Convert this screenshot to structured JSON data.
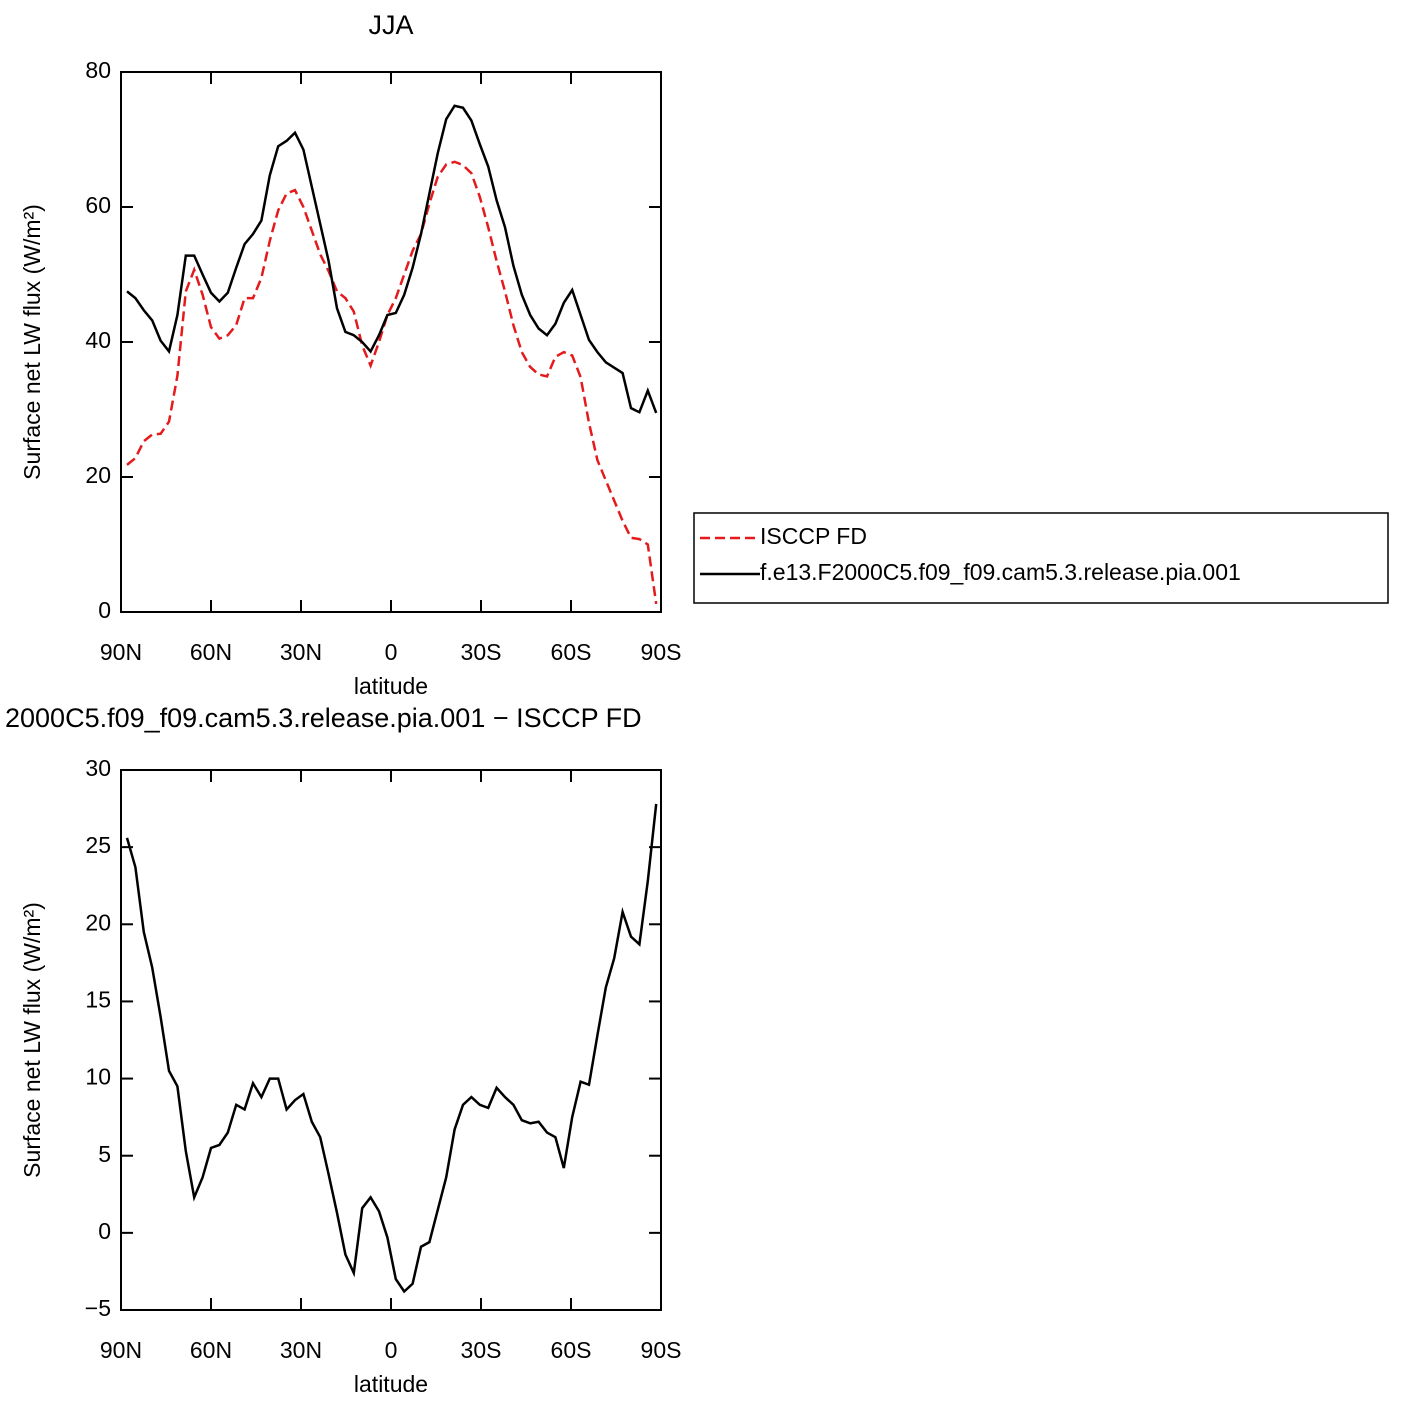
{
  "chart_data": [
    {
      "type": "line",
      "title": "JJA",
      "xlabel": "latitude",
      "ylabel": "Surface net LW flux (W/m²)",
      "x": [
        88,
        85.2,
        82.4,
        79.6,
        76.8,
        74,
        71.2,
        68.4,
        65.6,
        62.8,
        60,
        57.2,
        54.4,
        51.6,
        48.8,
        46,
        43.2,
        40.4,
        37.6,
        34.8,
        32,
        29.2,
        26.4,
        23.6,
        20.8,
        18,
        15.2,
        12.4,
        9.6,
        6.8,
        4,
        1.2,
        -1.6,
        -4.4,
        -7.2,
        -10,
        -12.8,
        -15.6,
        -18.4,
        -21.2,
        -24,
        -26.8,
        -29.6,
        -32.4,
        -35.2,
        -38,
        -40.8,
        -43.6,
        -46.4,
        -49.2,
        -52,
        -54.8,
        -57.6,
        -60.4,
        -63.2,
        -66,
        -68.8,
        -71.6,
        -74.4,
        -77.2,
        -80,
        -82.8,
        -85.6,
        -88.4
      ],
      "series": [
        {
          "name": "ISCCP FD",
          "color": "#e41a1c",
          "dash": true,
          "values": [
            21.8,
            22.8,
            25.3,
            26.3,
            26.4,
            28.2,
            35,
            47.5,
            50.7,
            47,
            42.2,
            40.5,
            41,
            42.5,
            46.5,
            46.5,
            49.5,
            55,
            59.5,
            62,
            62.5,
            60,
            56.5,
            53,
            50.5,
            47.5,
            46.5,
            44.5,
            39.5,
            36.5,
            40,
            44,
            46.5,
            50,
            53.5,
            56,
            60.5,
            64.5,
            66.3,
            66.7,
            66.2,
            65,
            61.5,
            57,
            52,
            47.5,
            42.5,
            38.5,
            36.3,
            35.2,
            34.9,
            37.8,
            38.5,
            38,
            34.8,
            28,
            22.5,
            19.5,
            16.5,
            13.5,
            11,
            10.8,
            10,
            1.2
          ]
        },
        {
          "name": "f.e13.F2000C5.f09_f09.cam5.3.release.pia.001",
          "color": "#000000",
          "dash": false,
          "values": [
            47.5,
            46.5,
            44.7,
            43.2,
            40.2,
            38.6,
            44,
            52.8,
            52.8,
            50,
            47.3,
            46,
            47.3,
            51,
            54.5,
            56,
            58,
            64.7,
            69,
            69.8,
            71,
            68.5,
            63,
            57.5,
            52,
            45,
            41.5,
            41,
            40,
            38.6,
            41,
            44,
            44.3,
            47,
            51,
            56,
            62,
            68,
            73,
            75,
            74.7,
            72.8,
            69.3,
            66,
            61,
            57,
            51.3,
            47,
            44,
            42,
            41,
            42.7,
            45.8,
            47.7,
            44,
            40.3,
            38.5,
            37,
            36.2,
            35.4,
            30.2,
            29.6,
            32.8,
            29.5
          ]
        }
      ],
      "xlim": [
        90,
        -90
      ],
      "xticks": [
        {
          "value": 90,
          "label": "90N"
        },
        {
          "value": 60,
          "label": "60N"
        },
        {
          "value": 30,
          "label": "30N"
        },
        0,
        {
          "value": -30,
          "label": "30S"
        },
        {
          "value": -60,
          "label": "60S"
        },
        {
          "value": -90,
          "label": "90S"
        }
      ],
      "ylim": [
        0,
        80
      ],
      "yticks": [
        0,
        20,
        40,
        60,
        80
      ],
      "legend": "right"
    },
    {
      "type": "line",
      "title": "2000C5.f09_f09.cam5.3.release.pia.001 − ISCCP FD",
      "xlabel": "latitude",
      "ylabel": "Surface net LW flux (W/m²)",
      "x": [
        88,
        85.2,
        82.4,
        79.6,
        76.8,
        74,
        71.2,
        68.4,
        65.6,
        62.8,
        60,
        57.2,
        54.4,
        51.6,
        48.8,
        46,
        43.2,
        40.4,
        37.6,
        34.8,
        32,
        29.2,
        26.4,
        23.6,
        20.8,
        18,
        15.2,
        12.4,
        9.6,
        6.8,
        4,
        1.2,
        -1.6,
        -4.4,
        -7.2,
        -10,
        -12.8,
        -15.6,
        -18.4,
        -21.2,
        -24,
        -26.8,
        -29.6,
        -32.4,
        -35.2,
        -38,
        -40.8,
        -43.6,
        -46.4,
        -49.2,
        -52,
        -54.8,
        -57.6,
        -60.4,
        -63.2,
        -66,
        -68.8,
        -71.6,
        -74.4,
        -77.2,
        -80,
        -82.8,
        -85.6,
        -88.4
      ],
      "series": [
        {
          "color": "#000000",
          "dash": false,
          "values": [
            25.6,
            23.7,
            19.5,
            17.2,
            14,
            10.5,
            9.5,
            5.3,
            2.3,
            3.6,
            5.5,
            5.7,
            6.5,
            8.3,
            8,
            9.7,
            8.8,
            10,
            10,
            8,
            8.6,
            9,
            7.2,
            6.2,
            3.8,
            1.3,
            -1.4,
            -2.6,
            1.6,
            2.3,
            1.4,
            -0.3,
            -3,
            -3.8,
            -3.3,
            -0.9,
            -0.6,
            1.5,
            3.6,
            6.7,
            8.3,
            8.8,
            8.3,
            8.1,
            9.4,
            8.8,
            8.3,
            7.3,
            7.1,
            7.2,
            6.5,
            6.2,
            4.2,
            7.5,
            9.8,
            9.6,
            12.8,
            15.9,
            17.8,
            20.8,
            19.2,
            18.7,
            22.8,
            27.8
          ]
        }
      ],
      "xlim": [
        90,
        -90
      ],
      "xticks": [
        {
          "value": 90,
          "label": "90N"
        },
        {
          "value": 60,
          "label": "60N"
        },
        {
          "value": 30,
          "label": "30N"
        },
        0,
        {
          "value": -30,
          "label": "30S"
        },
        {
          "value": -60,
          "label": "60S"
        },
        {
          "value": -90,
          "label": "90S"
        }
      ],
      "ylim": [
        -5,
        30
      ],
      "yticks": [
        {
          "value": -5,
          "label": "−5"
        },
        0,
        5,
        10,
        15,
        20,
        25,
        30
      ]
    }
  ]
}
